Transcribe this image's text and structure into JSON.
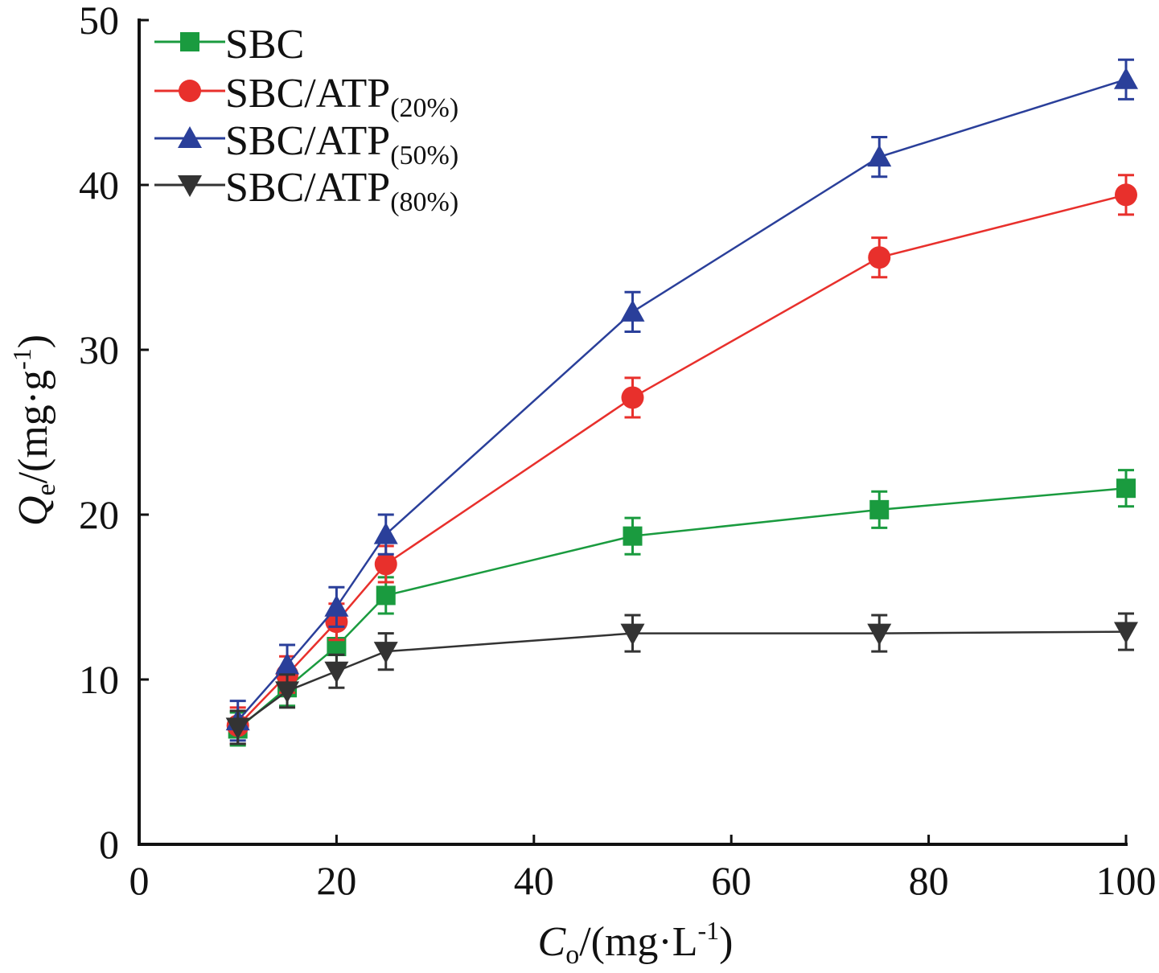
{
  "chart_data": {
    "type": "line",
    "xlabel": {
      "main": "C",
      "sub": "o",
      "rest": "/(mg·L",
      "sup": "-1",
      "close": ")"
    },
    "ylabel": {
      "main": "Q",
      "sub": "e",
      "rest": "/(mg·g",
      "sup": "-1",
      "close": ")"
    },
    "xlim": [
      0,
      100
    ],
    "ylim": [
      0,
      50
    ],
    "xticks": [
      "0",
      "20",
      "40",
      "60",
      "80",
      "100"
    ],
    "yticks": [
      "0",
      "10",
      "20",
      "30",
      "40",
      "50"
    ],
    "grid": false,
    "legend_position": "top-left",
    "x": [
      10,
      15,
      20,
      25,
      50,
      75,
      100
    ],
    "series": [
      {
        "name": "SBC",
        "name_sub": "",
        "color": "#1a9b3f",
        "marker": "square",
        "values": [
          7.0,
          9.5,
          12.0,
          15.1,
          18.7,
          20.3,
          21.6
        ],
        "errors": [
          1.0,
          1.1,
          1.1,
          1.1,
          1.1,
          1.1,
          1.1
        ]
      },
      {
        "name": "SBC/ATP",
        "name_sub": "(20%)",
        "color": "#e8302c",
        "marker": "circle",
        "values": [
          7.2,
          10.3,
          13.5,
          17.0,
          27.1,
          35.6,
          39.4
        ],
        "errors": [
          1.1,
          1.1,
          1.1,
          1.1,
          1.2,
          1.2,
          1.2
        ]
      },
      {
        "name": "SBC/ATP",
        "name_sub": "(50%)",
        "color": "#2a3f9a",
        "marker": "triangle-up",
        "values": [
          7.5,
          10.9,
          14.4,
          18.8,
          32.3,
          41.7,
          46.4
        ],
        "errors": [
          1.2,
          1.2,
          1.2,
          1.2,
          1.2,
          1.2,
          1.2
        ]
      },
      {
        "name": "SBC/ATP",
        "name_sub": "(80%)",
        "color": "#333333",
        "marker": "triangle-down",
        "values": [
          7.1,
          9.3,
          10.5,
          11.7,
          12.8,
          12.8,
          12.9
        ],
        "errors": [
          1.0,
          1.0,
          1.0,
          1.1,
          1.1,
          1.1,
          1.1
        ]
      }
    ]
  }
}
